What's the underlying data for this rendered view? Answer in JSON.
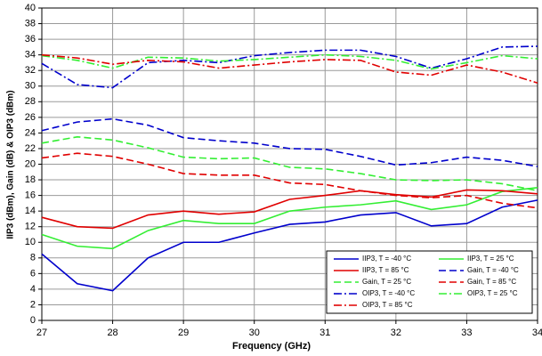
{
  "chart_data": {
    "type": "line",
    "xlabel": "Frequency (GHz)",
    "ylabel": "IIP3 (dBm), Gain (dB) & OIP3 (dBm)",
    "x": [
      27,
      27.5,
      28,
      28.5,
      29,
      29.5,
      30,
      30.5,
      31,
      31.5,
      32,
      32.5,
      33,
      33.5,
      34
    ],
    "xlim": [
      27,
      34
    ],
    "xticks": [
      27,
      28,
      29,
      30,
      31,
      32,
      33,
      34
    ],
    "ylim": [
      0,
      40
    ],
    "yticks": [
      0,
      2,
      4,
      6,
      8,
      10,
      12,
      14,
      16,
      18,
      20,
      22,
      24,
      26,
      28,
      30,
      32,
      34,
      36,
      38,
      40
    ],
    "grid": true,
    "legend": "lower right",
    "series": [
      {
        "name": "IIP3, T = -40 °C",
        "color": "#0000cc",
        "style": "solid",
        "values": [
          8.5,
          4.7,
          3.8,
          8,
          10,
          10,
          11.2,
          12.3,
          12.6,
          13.5,
          13.8,
          12.1,
          12.4,
          14.5,
          15.4
        ]
      },
      {
        "name": "IIP3, T = 25 °C",
        "color": "#33ee33",
        "style": "solid",
        "values": [
          11,
          9.5,
          9.2,
          11.5,
          12.8,
          12.4,
          12.4,
          14,
          14.5,
          14.8,
          15.3,
          14.2,
          14.8,
          16.5,
          17
        ]
      },
      {
        "name": "IIP3, T = 85 °C",
        "color": "#e00000",
        "style": "solid",
        "values": [
          13.2,
          12,
          11.8,
          13.5,
          14,
          13.6,
          13.9,
          15.5,
          16,
          16.6,
          16.1,
          15.8,
          16.7,
          16.6,
          16.2
        ]
      },
      {
        "name": "Gain, T = -40 °C",
        "color": "#0000cc",
        "style": "dash",
        "values": [
          24.3,
          25.4,
          25.8,
          25,
          23.4,
          23,
          22.7,
          22,
          21.9,
          21,
          19.9,
          20.2,
          20.9,
          20.5,
          19.7
        ]
      },
      {
        "name": "Gain, T = 25 °C",
        "color": "#33ee33",
        "style": "dash",
        "values": [
          22.7,
          23.5,
          23.1,
          22.1,
          20.9,
          20.7,
          20.8,
          19.6,
          19.4,
          18.8,
          18,
          17.9,
          18,
          17.5,
          16.6
        ]
      },
      {
        "name": "Gain, T = 85 °C",
        "color": "#e00000",
        "style": "dash",
        "values": [
          20.8,
          21.4,
          21,
          20,
          18.8,
          18.6,
          18.6,
          17.6,
          17.4,
          16.6,
          16,
          15.7,
          16,
          15,
          14.4
        ]
      },
      {
        "name": "OIP3, T = -40 °C",
        "color": "#0000cc",
        "style": "dashdot",
        "values": [
          32.9,
          30.2,
          29.8,
          33,
          33.3,
          33,
          33.9,
          34.3,
          34.6,
          34.6,
          33.8,
          32.3,
          33.5,
          35,
          35.1
        ]
      },
      {
        "name": "OIP3, T = 25 °C",
        "color": "#33ee33",
        "style": "dashdot",
        "values": [
          33.9,
          33.3,
          32.3,
          33.7,
          33.6,
          33.2,
          33.4,
          33.7,
          34,
          33.8,
          33.3,
          32.2,
          33,
          33.9,
          33.5
        ]
      },
      {
        "name": "OIP3, T = 85 °C",
        "color": "#e00000",
        "style": "dashdot",
        "values": [
          34,
          33.6,
          32.8,
          33.3,
          33.1,
          32.3,
          32.7,
          33.1,
          33.4,
          33.3,
          31.8,
          31.4,
          32.7,
          31.8,
          30.4
        ]
      }
    ]
  }
}
